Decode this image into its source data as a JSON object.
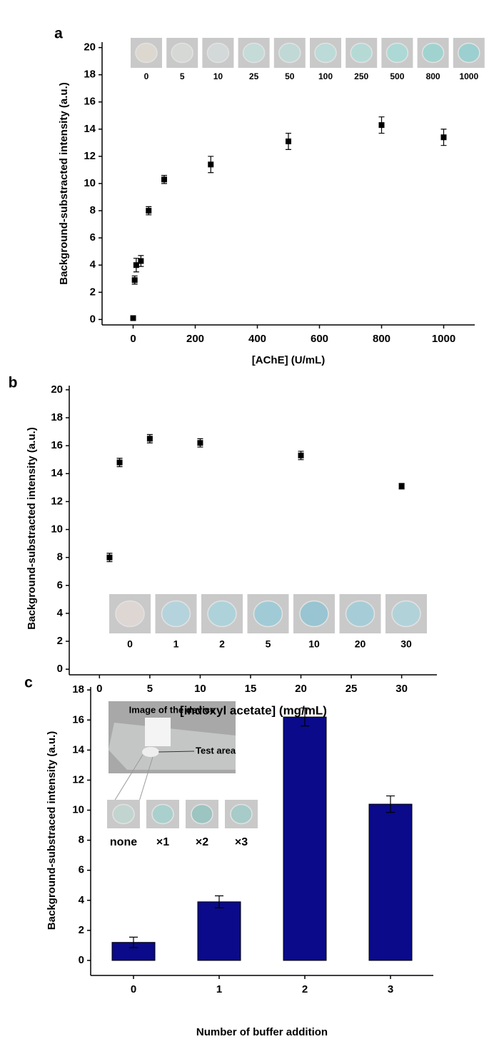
{
  "chart_data": [
    {
      "type": "scatter",
      "panel": "a",
      "x_label": "[AChE] (U/mL)",
      "y_label": "Background-substracted intensity (a.u.)",
      "x": [
        0,
        5,
        10,
        25,
        50,
        100,
        250,
        500,
        800,
        1000
      ],
      "values": [
        0.1,
        2.9,
        4.0,
        4.3,
        8.0,
        10.3,
        11.4,
        13.1,
        14.3,
        13.4
      ],
      "errors": [
        0.05,
        0.3,
        0.5,
        0.4,
        0.3,
        0.3,
        0.6,
        0.6,
        0.6,
        0.6
      ],
      "color": "#000000",
      "xlim": [
        -100,
        1100
      ],
      "xticks": [
        0,
        200,
        400,
        600,
        800,
        1000
      ],
      "ylim": [
        -0.4,
        20.4
      ],
      "yticks": [
        0,
        2,
        4,
        6,
        8,
        10,
        12,
        14,
        16,
        18,
        20
      ],
      "inset": {
        "labels": [
          "0",
          "5",
          "10",
          "25",
          "50",
          "100",
          "250",
          "500",
          "800",
          "1000"
        ],
        "colors": [
          "#dcd8cf",
          "#d6d8d6",
          "#d2d9d8",
          "#c4dbd8",
          "#c0d9d6",
          "#bcdad7",
          "#b5dad6",
          "#acd9d5",
          "#a0d3cf",
          "#9ccfcf"
        ]
      }
    },
    {
      "type": "scatter",
      "panel": "b",
      "x_label": "[indoxyl acetate] (mg/mL)",
      "y_label": "Background-substracted intensity (a.u.)",
      "x": [
        1,
        2,
        5,
        10,
        20,
        30
      ],
      "values": [
        8.0,
        14.8,
        16.5,
        16.2,
        15.3,
        13.1
      ],
      "errors": [
        0.3,
        0.3,
        0.3,
        0.3,
        0.3,
        0.2
      ],
      "color": "#000000",
      "xlim": [
        -3,
        33.5
      ],
      "xticks": [
        0,
        5,
        10,
        15,
        20,
        25,
        30
      ],
      "ylim": [
        -0.4,
        20.3
      ],
      "yticks": [
        0,
        2,
        4,
        6,
        8,
        10,
        12,
        14,
        16,
        18,
        20
      ],
      "inset": {
        "labels": [
          "0",
          "1",
          "2",
          "5",
          "10",
          "20",
          "30"
        ],
        "colors": [
          "#ddd6d3",
          "#b5d3dc",
          "#aed2da",
          "#a0cbd6",
          "#98c5d1",
          "#a6cdd7",
          "#b2d2da"
        ]
      }
    },
    {
      "type": "bar",
      "panel": "c",
      "x_label": "Number of buffer addition",
      "y_label": "Background-substraced intensity (a.u.)",
      "categories": [
        "0",
        "1",
        "2",
        "3"
      ],
      "values": [
        1.2,
        3.9,
        16.2,
        10.4
      ],
      "errors": [
        0.35,
        0.4,
        0.6,
        0.55
      ],
      "color": "#0a0a8a",
      "ylim": [
        -1,
        18.2
      ],
      "yticks": [
        0,
        2,
        4,
        6,
        8,
        10,
        12,
        14,
        16,
        18
      ],
      "device_title": "Image of the device",
      "device_label": "Test area",
      "inset": {
        "labels": [
          "none",
          "×1",
          "×2",
          "×3"
        ],
        "colors": [
          "#c2d4cf",
          "#a9d0cd",
          "#9cc4c0",
          "#a7cbc8"
        ]
      }
    }
  ]
}
